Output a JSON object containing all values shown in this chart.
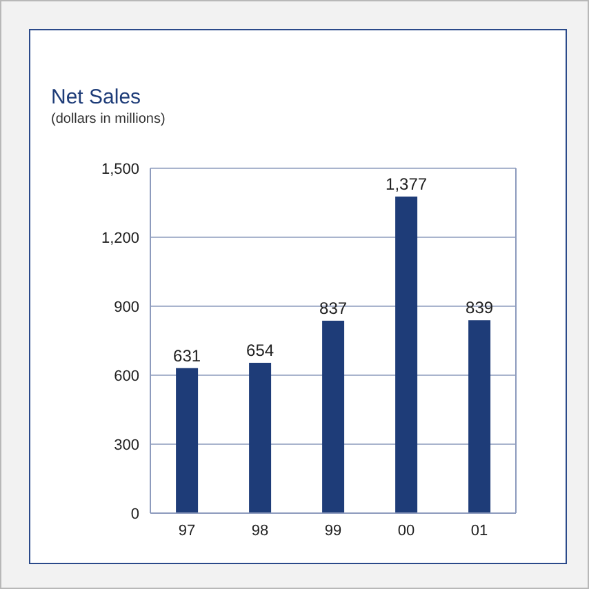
{
  "chart_data": {
    "type": "bar",
    "title": "Net Sales",
    "subtitle": "(dollars in millions)",
    "categories": [
      "97",
      "98",
      "99",
      "00",
      "01"
    ],
    "values": [
      631,
      654,
      837,
      1377,
      839
    ],
    "color": "#1e3c78",
    "value_labels": [
      "631",
      "654",
      "837",
      "1,377",
      "839"
    ],
    "ylim": [
      0,
      1500
    ],
    "yticks": [
      0,
      300,
      600,
      900,
      {
        "value": 1200,
        "label": "1,200"
      },
      {
        "value": 1500,
        "label": "1,500"
      }
    ],
    "grid": "y"
  }
}
